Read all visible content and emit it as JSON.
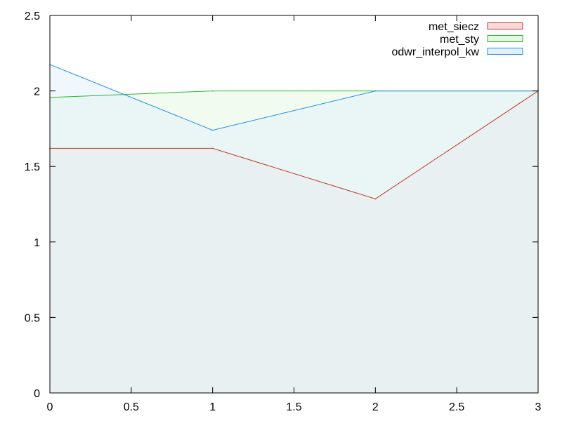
{
  "chart_data": {
    "type": "area",
    "title": "",
    "xlabel": "",
    "ylabel": "",
    "xlim": [
      0,
      3
    ],
    "ylim": [
      0,
      2.5
    ],
    "x_ticks": [
      "0",
      "0.5",
      "1",
      "1.5",
      "2",
      "2.5",
      "3"
    ],
    "y_ticks": [
      "0",
      "0.5",
      "1",
      "1.5",
      "2",
      "2.5"
    ],
    "grid": false,
    "legend_position": "top-right",
    "x": [
      0,
      1,
      2,
      3
    ],
    "series": [
      {
        "name": "met_siecz",
        "values": [
          1.62,
          1.62,
          1.285,
          2.0
        ],
        "line_color": "#c0392b",
        "fill_color": "#f8d8d8"
      },
      {
        "name": "met_sty",
        "values": [
          1.957,
          2.0,
          2.0,
          2.0
        ],
        "line_color": "#2db52d",
        "fill_color": "#e6f7e1"
      },
      {
        "name": "odwr_interpol_kw",
        "values": [
          2.175,
          1.74,
          2.0,
          2.0
        ],
        "line_color": "#1e90e8",
        "fill_color": "#e2f0fb"
      }
    ]
  }
}
